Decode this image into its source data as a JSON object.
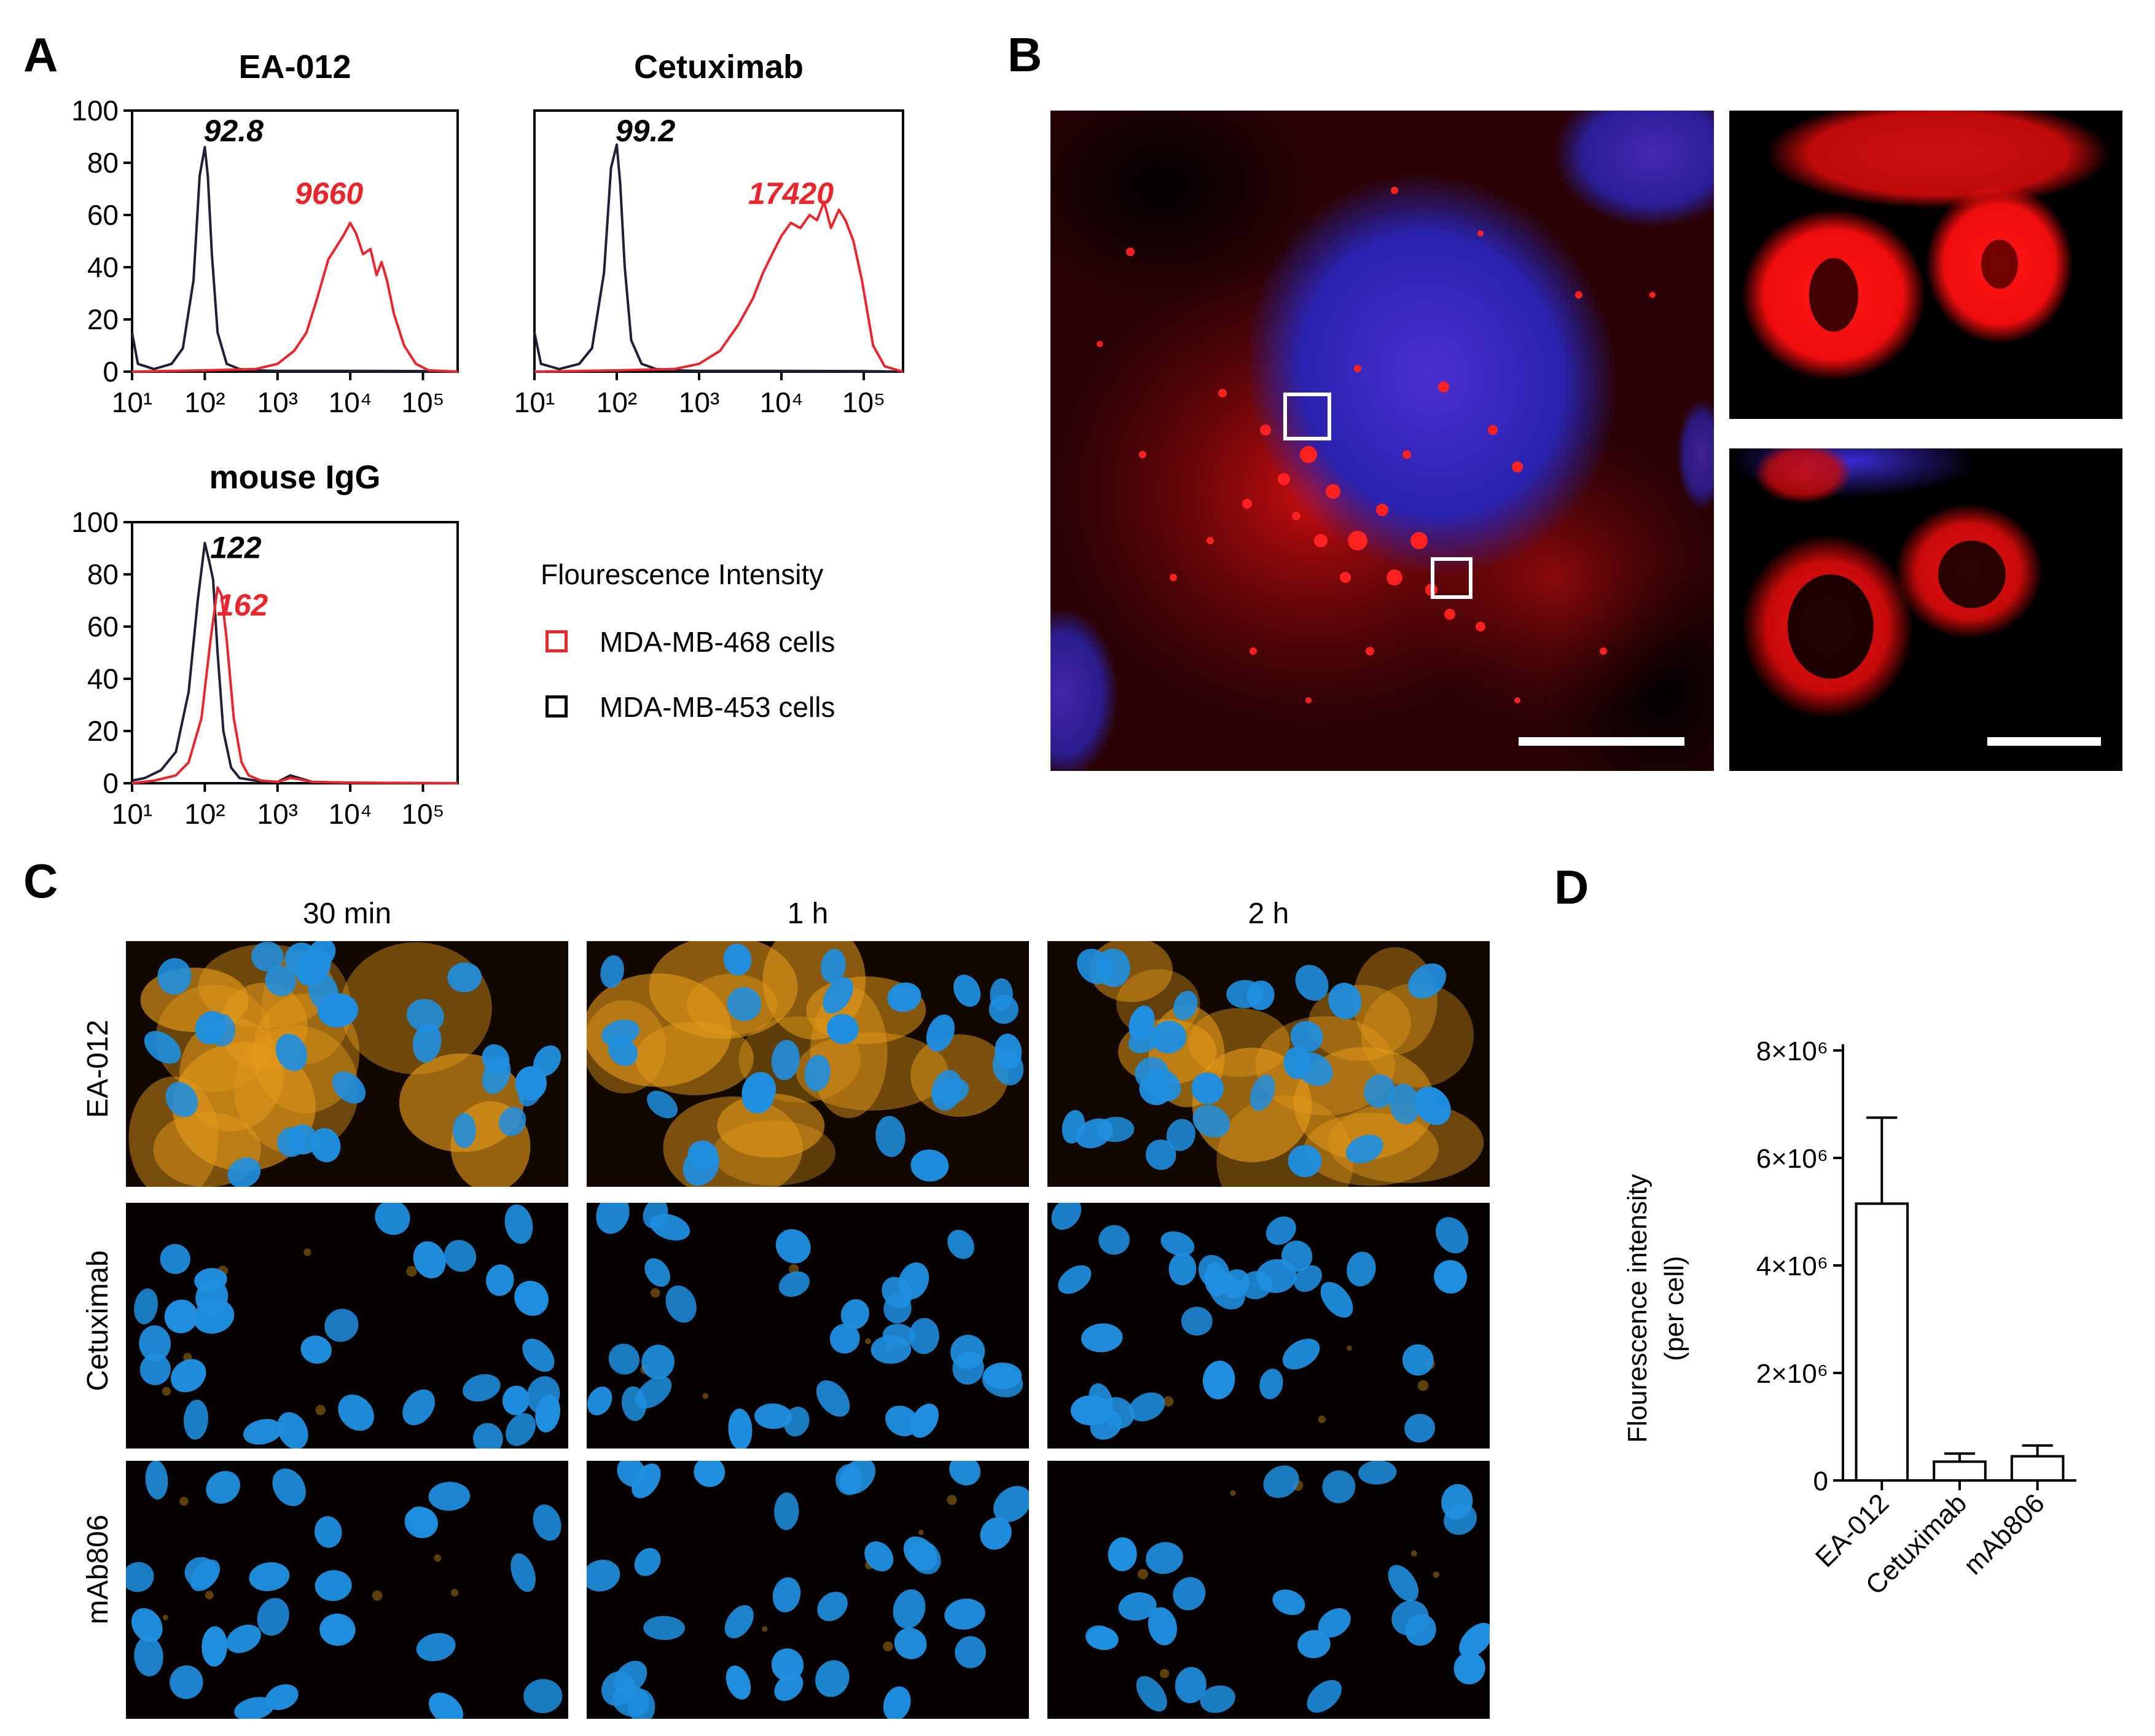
{
  "panel_labels": {
    "a": "A",
    "b": "B",
    "c": "C",
    "d": "D"
  },
  "panel_a": {
    "legend": {
      "title": "Flourescence Intensity",
      "items": [
        {
          "label": "MDA-MB-468 cells",
          "color": "#e8262b"
        },
        {
          "label": "MDA-MB-453 cells",
          "color": "#000000"
        }
      ]
    },
    "colors": {
      "red": "#e8262b",
      "black": "#1f1f3a"
    }
  },
  "panel_b": {
    "description_colors": {
      "nucleus": "#2a2bb0",
      "signal": "#ff1a1a"
    }
  },
  "panel_c": {
    "columns": [
      "30 min",
      "1 h",
      "2 h"
    ],
    "rows": [
      "EA-012",
      "Cetuximab",
      "mAb806"
    ],
    "colors": {
      "nucleus": "#1f8fe0",
      "membrane": "#e59a1a"
    }
  },
  "chart_data": [
    {
      "type": "line",
      "title": "EA-012",
      "x_scale": "log",
      "xlim": [
        10,
        300000
      ],
      "ylim": [
        0,
        100
      ],
      "x_ticks": [
        "10¹",
        "10²",
        "10³",
        "10⁴",
        "10⁵"
      ],
      "y_ticks": [
        "0",
        "20",
        "40",
        "60",
        "80",
        "100"
      ],
      "annotations": [
        {
          "text": "92.8",
          "color": "#000000"
        },
        {
          "text": "9660",
          "color": "#e8262b"
        }
      ],
      "series": [
        {
          "color": "#1f1f3a",
          "x": [
            10,
            12,
            20,
            35,
            50,
            70,
            85,
            100,
            110,
            125,
            150,
            200,
            300,
            500,
            1000,
            10000,
            100000,
            300000
          ],
          "y": [
            15,
            3,
            1,
            3,
            9,
            35,
            75,
            86,
            75,
            45,
            15,
            3,
            1,
            0.5,
            0.3,
            0.3,
            0.2,
            0
          ]
        },
        {
          "color": "#e8262b",
          "x": [
            10,
            100,
            500,
            1000,
            1700,
            2500,
            3500,
            5000,
            6500,
            8000,
            10000,
            12000,
            15000,
            19000,
            23000,
            27000,
            32000,
            40000,
            55000,
            80000,
            120000,
            300000
          ],
          "y": [
            0,
            0.5,
            1,
            3,
            8,
            15,
            28,
            43,
            48,
            52,
            57,
            53,
            45,
            47,
            37,
            42,
            35,
            22,
            10,
            3,
            0.5,
            0
          ]
        }
      ]
    },
    {
      "type": "line",
      "title": "Cetuximab",
      "x_scale": "log",
      "xlim": [
        10,
        300000
      ],
      "ylim": [
        0,
        100
      ],
      "x_ticks": [
        "10¹",
        "10²",
        "10³",
        "10⁴",
        "10⁵"
      ],
      "y_ticks": [
        "0",
        "20",
        "40",
        "60",
        "80",
        "100"
      ],
      "annotations": [
        {
          "text": "99.2",
          "color": "#000000"
        },
        {
          "text": "17420",
          "color": "#e8262b"
        }
      ],
      "series": [
        {
          "color": "#1f1f3a",
          "x": [
            10,
            12,
            20,
            35,
            50,
            70,
            85,
            100,
            110,
            125,
            150,
            200,
            300,
            500,
            1000,
            10000,
            100000,
            300000
          ],
          "y": [
            15,
            3,
            1,
            3,
            9,
            38,
            78,
            87,
            72,
            40,
            12,
            3,
            1,
            0.5,
            0.3,
            0.3,
            0.2,
            0
          ]
        },
        {
          "color": "#e8262b",
          "x": [
            10,
            100,
            500,
            1000,
            1800,
            3000,
            4500,
            6000,
            8000,
            10000,
            13000,
            17000,
            22000,
            27000,
            33000,
            40000,
            50000,
            60000,
            75000,
            95000,
            130000,
            180000,
            300000
          ],
          "y": [
            0,
            0.5,
            1,
            3,
            8,
            18,
            28,
            38,
            46,
            52,
            57,
            55,
            60,
            58,
            65,
            55,
            62,
            58,
            50,
            35,
            10,
            2,
            0
          ]
        }
      ]
    },
    {
      "type": "line",
      "title": "mouse IgG",
      "x_scale": "log",
      "xlim": [
        10,
        300000
      ],
      "ylim": [
        0,
        100
      ],
      "x_ticks": [
        "10¹",
        "10²",
        "10³",
        "10⁴",
        "10⁵"
      ],
      "y_ticks": [
        "0",
        "20",
        "40",
        "60",
        "80",
        "100"
      ],
      "annotations": [
        {
          "text": "122",
          "color": "#000000"
        },
        {
          "text": "162",
          "color": "#e8262b"
        }
      ],
      "series": [
        {
          "color": "#1f1f3a",
          "x": [
            10,
            15,
            25,
            40,
            60,
            80,
            100,
            115,
            130,
            150,
            180,
            230,
            300,
            500,
            1000,
            1500,
            2000,
            3000,
            10000,
            300000
          ],
          "y": [
            1,
            2,
            5,
            12,
            35,
            70,
            92,
            85,
            78,
            50,
            20,
            6,
            2,
            1,
            0.5,
            3,
            2,
            0.5,
            0.2,
            0
          ]
        },
        {
          "color": "#e8262b",
          "x": [
            10,
            20,
            40,
            60,
            90,
            120,
            150,
            170,
            200,
            250,
            320,
            400,
            600,
            1000,
            1500,
            2000,
            3000,
            10000,
            300000
          ],
          "y": [
            0,
            1,
            3,
            8,
            25,
            55,
            75,
            72,
            55,
            25,
            8,
            3,
            1,
            0.5,
            2,
            1.5,
            0.5,
            0.2,
            0
          ]
        }
      ]
    },
    {
      "type": "bar",
      "categories": [
        "EA-012",
        "Cetuximab",
        "mAb806"
      ],
      "values": [
        5150000,
        350000,
        450000
      ],
      "errors": [
        1600000,
        150000,
        200000
      ],
      "ylabel": "Flourescence intensity (per cell)",
      "ylabel_lines": [
        "Flourescence intensity",
        "(per cell)"
      ],
      "ylim": [
        0,
        8000000
      ],
      "y_ticks": [
        {
          "value": 0,
          "label": "0"
        },
        {
          "value": 2000000,
          "label": "2×10⁶"
        },
        {
          "value": 4000000,
          "label": "4×10⁶"
        },
        {
          "value": 6000000,
          "label": "6×10⁶"
        },
        {
          "value": 8000000,
          "label": "8×10⁶"
        }
      ]
    }
  ]
}
